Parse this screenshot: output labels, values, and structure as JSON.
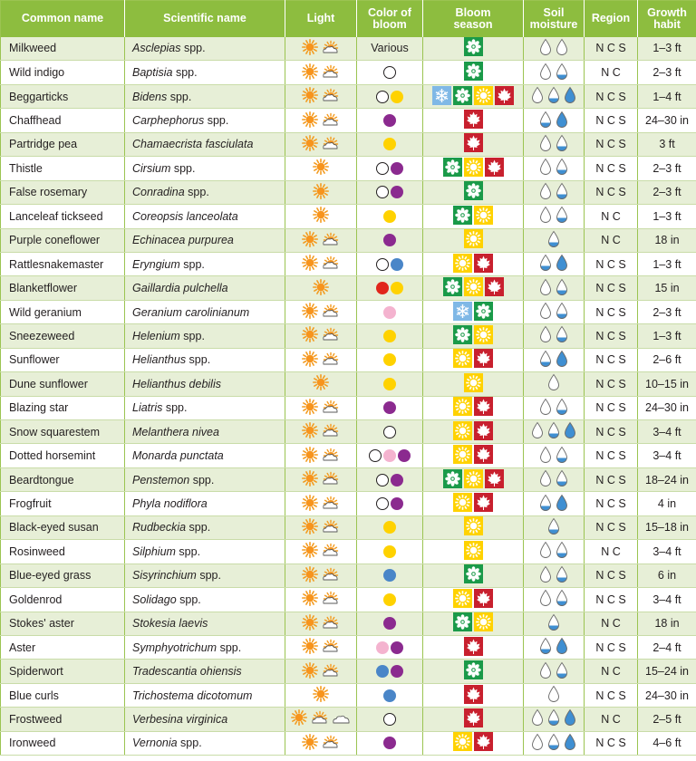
{
  "headers": {
    "common": "Common name",
    "scientific": "Scientific name",
    "light": "Light",
    "color": [
      "Color of",
      "bloom"
    ],
    "season": [
      "Bloom",
      "season"
    ],
    "moisture": [
      "Soil",
      "moisture"
    ],
    "region": "Region",
    "habit": [
      "Growth",
      "habit"
    ]
  },
  "colors": {
    "header_bg": "#8dbd3f",
    "row_alt": "#e7efd7",
    "purple": "#8b2a8f",
    "yellow": "#ffd200",
    "blue": "#4a86c8",
    "pink": "#f4b3cf",
    "red": "#e1261c",
    "spring": "#1a9a49",
    "summer": "#ffd200",
    "fall": "#c8202e",
    "winter": "#7fb8e6"
  },
  "rows": [
    {
      "common": "Milkweed",
      "sci": "Asclepias",
      "suffix": " spp.",
      "light": [
        "sun",
        "partsun"
      ],
      "bloom_text": "Various",
      "bloom": [],
      "season": [
        "spring"
      ],
      "moisture": [
        "dry",
        "medium"
      ],
      "region": "N C S",
      "habit": "1–3 ft"
    },
    {
      "common": "Wild indigo",
      "sci": "Baptisia",
      "suffix": " spp.",
      "light": [
        "sun",
        "partsun"
      ],
      "bloom": [
        "white"
      ],
      "season": [
        "spring"
      ],
      "moisture": [
        "dry",
        "moist"
      ],
      "region": "N C",
      "habit": "2–3 ft"
    },
    {
      "common": "Beggarticks",
      "sci": "Bidens",
      "suffix": " spp.",
      "light": [
        "sun",
        "partsun"
      ],
      "bloom": [
        "white",
        "yellow"
      ],
      "season": [
        "winter",
        "spring",
        "summer",
        "fall"
      ],
      "moisture": [
        "dry",
        "moist",
        "wet"
      ],
      "region": "N C S",
      "habit": "1–4 ft"
    },
    {
      "common": "Chaffhead",
      "sci": "Carphephorus",
      "suffix": " spp.",
      "light": [
        "sun",
        "partsun"
      ],
      "bloom": [
        "purple"
      ],
      "season": [
        "fall"
      ],
      "moisture": [
        "moist",
        "wet"
      ],
      "region": "N C S",
      "habit": "24–30 in"
    },
    {
      "common": "Partridge pea",
      "sci": "Chamaecrista fasciulata",
      "suffix": "",
      "light": [
        "sun",
        "partsun"
      ],
      "bloom": [
        "yellow"
      ],
      "season": [
        "fall"
      ],
      "moisture": [
        "dry",
        "moist"
      ],
      "region": "N C S",
      "habit": "3 ft"
    },
    {
      "common": "Thistle",
      "sci": "Cirsium",
      "suffix": " spp.",
      "light": [
        "sun"
      ],
      "bloom": [
        "white",
        "purple"
      ],
      "season": [
        "spring",
        "summer",
        "fall"
      ],
      "moisture": [
        "dry",
        "moist"
      ],
      "region": "N C S",
      "habit": "2–3 ft"
    },
    {
      "common": "False rosemary",
      "sci": "Conradina",
      "suffix": " spp.",
      "light": [
        "sun"
      ],
      "bloom": [
        "white",
        "purple"
      ],
      "season": [
        "spring"
      ],
      "moisture": [
        "dry",
        "moist"
      ],
      "region": "N C S",
      "habit": "2–3 ft"
    },
    {
      "common": "Lanceleaf tickseed",
      "sci": "Coreopsis lanceolata",
      "suffix": "",
      "light": [
        "sun"
      ],
      "bloom": [
        "yellow"
      ],
      "season": [
        "spring",
        "summer"
      ],
      "moisture": [
        "dry",
        "moist"
      ],
      "region": "N C",
      "habit": "1–3 ft"
    },
    {
      "common": "Purple coneflower",
      "sci": "Echinacea purpurea",
      "suffix": "",
      "light": [
        "sun",
        "partsun"
      ],
      "bloom": [
        "purple"
      ],
      "season": [
        "summer"
      ],
      "moisture": [
        "moist"
      ],
      "region": "N C",
      "habit": "18 in"
    },
    {
      "common": "Rattlesnakemaster",
      "sci": "Eryngium",
      "suffix": " spp.",
      "light": [
        "sun",
        "partsun"
      ],
      "bloom": [
        "white",
        "blue"
      ],
      "season": [
        "summer",
        "fall"
      ],
      "moisture": [
        "moist",
        "wet"
      ],
      "region": "N C S",
      "habit": "1–3 ft"
    },
    {
      "common": "Blanketflower",
      "sci": "Gaillardia pulchella",
      "suffix": "",
      "light": [
        "sun"
      ],
      "bloom": [
        "red",
        "yellow"
      ],
      "season": [
        "spring",
        "summer",
        "fall"
      ],
      "moisture": [
        "dry",
        "moist"
      ],
      "region": "N C S",
      "habit": "15 in"
    },
    {
      "common": "Wild geranium",
      "sci": "Geranium carolinianum",
      "suffix": "",
      "light": [
        "sun",
        "partsun"
      ],
      "bloom": [
        "pink"
      ],
      "season": [
        "winter",
        "spring"
      ],
      "moisture": [
        "dry",
        "moist"
      ],
      "region": "N C S",
      "habit": "2–3 ft"
    },
    {
      "common": "Sneezeweed",
      "sci": "Helenium",
      "suffix": " spp.",
      "light": [
        "sun",
        "partsun"
      ],
      "bloom": [
        "yellow"
      ],
      "season": [
        "spring",
        "summer"
      ],
      "moisture": [
        "dry",
        "moist"
      ],
      "region": "N C S",
      "habit": "1–3 ft"
    },
    {
      "common": "Sunflower",
      "sci": "Helianthus",
      "suffix": " spp.",
      "light": [
        "sun",
        "partsun"
      ],
      "bloom": [
        "yellow"
      ],
      "season": [
        "summer",
        "fall"
      ],
      "moisture": [
        "moist",
        "wet"
      ],
      "region": "N C S",
      "habit": "2–6 ft"
    },
    {
      "common": "Dune sunflower",
      "sci": "Helianthus debilis",
      "suffix": "",
      "light": [
        "sun"
      ],
      "bloom": [
        "yellow"
      ],
      "season": [
        "summer"
      ],
      "moisture": [
        "dry"
      ],
      "region": "N C S",
      "habit": "10–15 in"
    },
    {
      "common": "Blazing star",
      "sci": "Liatris",
      "suffix": " spp.",
      "light": [
        "sun",
        "partsun"
      ],
      "bloom": [
        "purple"
      ],
      "season": [
        "summer",
        "fall"
      ],
      "moisture": [
        "dry",
        "moist"
      ],
      "region": "N C S",
      "habit": "24–30 in"
    },
    {
      "common": "Snow squarestem",
      "sci": "Melanthera nivea",
      "suffix": "",
      "light": [
        "sun",
        "partsun"
      ],
      "bloom": [
        "white"
      ],
      "season": [
        "summer",
        "fall"
      ],
      "moisture": [
        "dry",
        "moist",
        "wet"
      ],
      "region": "N C S",
      "habit": "3–4 ft"
    },
    {
      "common": "Dotted horsemint",
      "sci": "Monarda punctata",
      "suffix": "",
      "light": [
        "sun",
        "partsun"
      ],
      "bloom": [
        "white",
        "pink",
        "purple"
      ],
      "season": [
        "summer",
        "fall"
      ],
      "moisture": [
        "dry",
        "moist"
      ],
      "region": "N C S",
      "habit": "3–4 ft"
    },
    {
      "common": "Beardtongue",
      "sci": "Penstemon",
      "suffix": " spp.",
      "light": [
        "sun",
        "partsun"
      ],
      "bloom": [
        "white",
        "purple"
      ],
      "season": [
        "spring",
        "summer",
        "fall"
      ],
      "moisture": [
        "dry",
        "moist"
      ],
      "region": "N C S",
      "habit": "18–24 in"
    },
    {
      "common": "Frogfruit",
      "sci": "Phyla nodiflora",
      "suffix": "",
      "light": [
        "sun",
        "partsun"
      ],
      "bloom": [
        "white",
        "purple"
      ],
      "season": [
        "summer",
        "fall"
      ],
      "moisture": [
        "moist",
        "wet"
      ],
      "region": "N C S",
      "habit": "4 in"
    },
    {
      "common": "Black-eyed susan",
      "sci": "Rudbeckia",
      "suffix": " spp.",
      "light": [
        "sun",
        "partsun"
      ],
      "bloom": [
        "yellow"
      ],
      "season": [
        "summer"
      ],
      "moisture": [
        "moist"
      ],
      "region": "N C S",
      "habit": "15–18 in"
    },
    {
      "common": "Rosinweed",
      "sci": "Silphium",
      "suffix": " spp.",
      "light": [
        "sun",
        "partsun"
      ],
      "bloom": [
        "yellow"
      ],
      "season": [
        "summer"
      ],
      "moisture": [
        "dry",
        "moist"
      ],
      "region": "N C",
      "habit": "3–4 ft"
    },
    {
      "common": "Blue-eyed grass",
      "sci": "Sisyrinchium",
      "suffix": " spp.",
      "light": [
        "sun",
        "partsun"
      ],
      "bloom": [
        "blue"
      ],
      "season": [
        "spring"
      ],
      "moisture": [
        "dry",
        "moist"
      ],
      "region": "N C S",
      "habit": "6 in"
    },
    {
      "common": "Goldenrod",
      "sci": "Solidago",
      "suffix": " spp.",
      "light": [
        "sun",
        "partsun"
      ],
      "bloom": [
        "yellow"
      ],
      "season": [
        "summer",
        "fall"
      ],
      "moisture": [
        "dry",
        "moist"
      ],
      "region": "N C S",
      "habit": "3–4 ft"
    },
    {
      "common": "Stokes' aster",
      "sci": "Stokesia laevis",
      "suffix": "",
      "light": [
        "sun",
        "partsun"
      ],
      "bloom": [
        "purple"
      ],
      "season": [
        "spring",
        "summer"
      ],
      "moisture": [
        "moist"
      ],
      "region": "N C",
      "habit": "18 in"
    },
    {
      "common": "Aster",
      "sci": "Symphyotrichum",
      "suffix": " spp.",
      "light": [
        "sun",
        "partsun"
      ],
      "bloom": [
        "pink",
        "purple"
      ],
      "season": [
        "fall"
      ],
      "moisture": [
        "moist",
        "wet"
      ],
      "region": "N C S",
      "habit": "2–4 ft"
    },
    {
      "common": "Spiderwort",
      "sci": "Tradescantia ohiensis",
      "suffix": "",
      "light": [
        "sun",
        "partsun"
      ],
      "bloom": [
        "blue",
        "purple"
      ],
      "season": [
        "spring"
      ],
      "moisture": [
        "dry",
        "moist"
      ],
      "region": "N C",
      "habit": "15–24 in"
    },
    {
      "common": "Blue curls",
      "sci": "Trichostema dicotomum",
      "suffix": "",
      "light": [
        "sun"
      ],
      "bloom": [
        "blue"
      ],
      "season": [
        "fall"
      ],
      "moisture": [
        "dry"
      ],
      "region": "N C S",
      "habit": "24–30 in"
    },
    {
      "common": "Frostweed",
      "sci": "Verbesina virginica",
      "suffix": "",
      "light": [
        "sun",
        "partsun",
        "shade"
      ],
      "bloom": [
        "white"
      ],
      "season": [
        "fall"
      ],
      "moisture": [
        "dry",
        "moist",
        "wet"
      ],
      "region": "N C",
      "habit": "2–5 ft"
    },
    {
      "common": "Ironweed",
      "sci": "Vernonia",
      "suffix": " spp.",
      "light": [
        "sun",
        "partsun"
      ],
      "bloom": [
        "purple"
      ],
      "season": [
        "summer",
        "fall"
      ],
      "moisture": [
        "dry",
        "moist",
        "wet"
      ],
      "region": "N C S",
      "habit": "4–6 ft"
    }
  ]
}
